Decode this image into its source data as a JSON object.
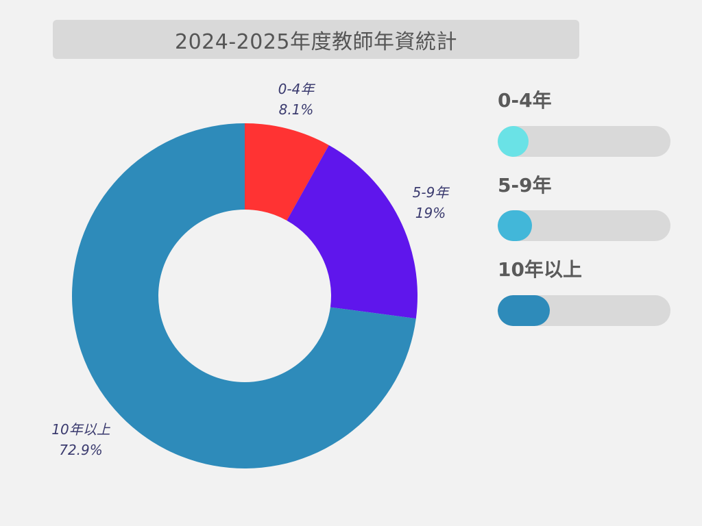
{
  "title": "2024-2025年度教師年資統計",
  "chart_data": {
    "type": "pie",
    "title": "2024-2025年度教師年資統計",
    "donut": true,
    "slices": [
      {
        "label": "0-4年",
        "value": 8.1,
        "value_label": "8.1%",
        "color": "#ff3333"
      },
      {
        "label": "5-9年",
        "value": 19,
        "value_label": "19%",
        "color": "#5f16ec"
      },
      {
        "label": "10年以上",
        "value": 72.9,
        "value_label": "72.9%",
        "color": "#2e8bba"
      }
    ]
  },
  "legend": [
    {
      "label": "0-4年",
      "fill_fraction": 0.18,
      "color": "#6ae2e6"
    },
    {
      "label": "5-9年",
      "fill_fraction": 0.2,
      "color": "#42b7d9"
    },
    {
      "label": "10年以上",
      "fill_fraction": 0.3,
      "color": "#2e8bba"
    }
  ]
}
